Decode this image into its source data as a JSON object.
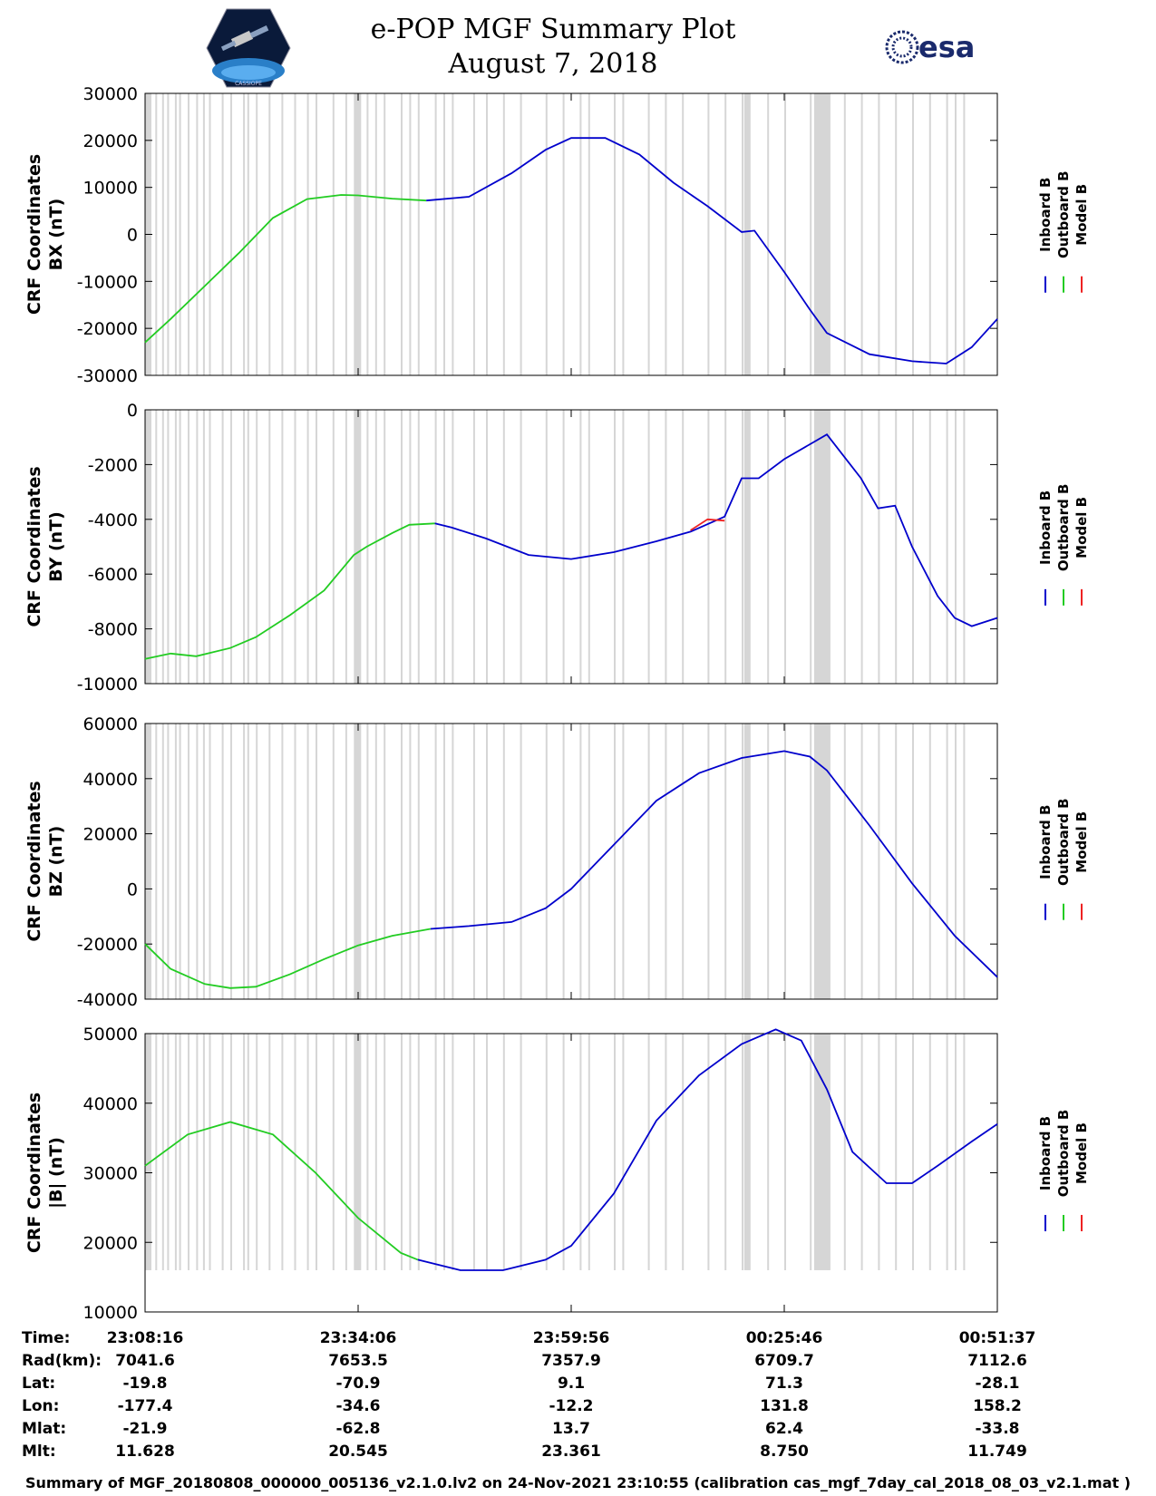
{
  "header": {
    "title": "e-POP MGF Summary Plot",
    "date": "August 7, 2018",
    "mission_logo_icon": "satellite-hexagon-icon",
    "mission_logo_text": "CASSIOPE",
    "esa_logo_text": "esa"
  },
  "legend": {
    "inboard": "Inboard B",
    "outboard": "Outboard B",
    "model": "Model B"
  },
  "colors": {
    "inboard": "#0000cc",
    "outboard": "#22cc22",
    "model": "#ee2222",
    "gaps": "#d6d6d6",
    "axis": "#000000"
  },
  "chart_data": [
    {
      "type": "line",
      "ylabel": "CRF Coordinates",
      "ylabel2": "BX (nT)",
      "ylim": [
        -30000,
        30000
      ],
      "yticks": [
        "30000",
        "20000",
        "10000",
        "0",
        "-10000",
        "-20000",
        "-30000"
      ],
      "yticks_values": [
        30000,
        20000,
        10000,
        0,
        -10000,
        -20000,
        -30000
      ],
      "series": [
        {
          "name": "Outboard B",
          "x": [
            0,
            0.03,
            0.07,
            0.11,
            0.15,
            0.19,
            0.23,
            0.25,
            0.29,
            0.33
          ],
          "y": [
            -23000,
            -18000,
            -11000,
            -4000,
            3500,
            7500,
            8400,
            8300,
            7600,
            7200
          ]
        },
        {
          "name": "Inboard B",
          "x": [
            0.33,
            0.38,
            0.43,
            0.47,
            0.5,
            0.54,
            0.58,
            0.62,
            0.66,
            0.7,
            0.715,
            0.75,
            0.78,
            0.8,
            0.85,
            0.9,
            0.94,
            0.97,
            1.0
          ],
          "y": [
            7200,
            8000,
            13000,
            18000,
            20500,
            20500,
            17000,
            11000,
            6000,
            500,
            800,
            -8000,
            -16000,
            -21000,
            -25500,
            -27000,
            -27500,
            -24000,
            -18000
          ]
        }
      ]
    },
    {
      "type": "line",
      "ylabel": "CRF Coordinates",
      "ylabel2": "BY (nT)",
      "ylim": [
        -10000,
        0
      ],
      "yticks": [
        "0",
        "-2000",
        "-4000",
        "-6000",
        "-8000",
        "-10000"
      ],
      "yticks_values": [
        0,
        -2000,
        -4000,
        -6000,
        -8000,
        -10000
      ],
      "series": [
        {
          "name": "Outboard B",
          "x": [
            0,
            0.03,
            0.06,
            0.1,
            0.13,
            0.17,
            0.21,
            0.245,
            0.26,
            0.29,
            0.31,
            0.34
          ],
          "y": [
            -9100,
            -8900,
            -9000,
            -8700,
            -8300,
            -7500,
            -6600,
            -5300,
            -5000,
            -4500,
            -4200,
            -4150
          ]
        },
        {
          "name": "Inboard B",
          "x": [
            0.34,
            0.36,
            0.4,
            0.45,
            0.5,
            0.55,
            0.6,
            0.64,
            0.68,
            0.7,
            0.72,
            0.75,
            0.8,
            0.84,
            0.86,
            0.88,
            0.9,
            0.93,
            0.95,
            0.97,
            1.0
          ],
          "y": [
            -4150,
            -4300,
            -4700,
            -5300,
            -5450,
            -5200,
            -4800,
            -4450,
            -3900,
            -2500,
            -2500,
            -1800,
            -900,
            -2500,
            -3600,
            -3500,
            -5000,
            -6800,
            -7600,
            -7900,
            -7600
          ]
        },
        {
          "name": "Model B",
          "x": [
            0.64,
            0.66,
            0.68
          ],
          "y": [
            -4400,
            -4000,
            -4050
          ]
        }
      ]
    },
    {
      "type": "line",
      "ylabel": "CRF Coordinates",
      "ylabel2": "BZ (nT)",
      "ylim": [
        -40000,
        60000
      ],
      "yticks": [
        "60000",
        "40000",
        "20000",
        "0",
        "-20000",
        "-40000"
      ],
      "yticks_values": [
        60000,
        40000,
        20000,
        0,
        -20000,
        -40000
      ],
      "series": [
        {
          "name": "Outboard B",
          "x": [
            0,
            0.03,
            0.07,
            0.1,
            0.13,
            0.17,
            0.21,
            0.25,
            0.29,
            0.335
          ],
          "y": [
            -20000,
            -29000,
            -34500,
            -36000,
            -35500,
            -31000,
            -25500,
            -20500,
            -17000,
            -14500
          ]
        },
        {
          "name": "Inboard B",
          "x": [
            0.335,
            0.38,
            0.43,
            0.47,
            0.5,
            0.55,
            0.6,
            0.65,
            0.7,
            0.75,
            0.78,
            0.8,
            0.85,
            0.9,
            0.95,
            1.0
          ],
          "y": [
            -14500,
            -13500,
            -12000,
            -7000,
            0,
            16000,
            32000,
            42000,
            47500,
            50000,
            48000,
            43000,
            23000,
            2000,
            -17000,
            -32000
          ]
        }
      ]
    },
    {
      "type": "line",
      "ylabel": "CRF Coordinates",
      "ylabel2": "|B| (nT)",
      "ylim": [
        10000,
        50000
      ],
      "yticks": [
        "50000",
        "40000",
        "30000",
        "20000",
        "10000"
      ],
      "yticks_values": [
        50000,
        40000,
        30000,
        20000,
        10000
      ],
      "series": [
        {
          "name": "Outboard B",
          "x": [
            0,
            0.05,
            0.1,
            0.15,
            0.2,
            0.25,
            0.3,
            0.32
          ],
          "y": [
            31000,
            35500,
            37300,
            35500,
            30000,
            23500,
            18500,
            17500
          ]
        },
        {
          "name": "Inboard B",
          "x": [
            0.32,
            0.37,
            0.42,
            0.47,
            0.5,
            0.55,
            0.6,
            0.65,
            0.7,
            0.74,
            0.77,
            0.8,
            0.83,
            0.87,
            0.9,
            0.93,
            0.97,
            1.0
          ],
          "y": [
            17500,
            16000,
            16000,
            17500,
            19500,
            27000,
            37500,
            44000,
            48500,
            50600,
            49000,
            42000,
            33000,
            28500,
            28500,
            31000,
            34500,
            37000
          ]
        }
      ]
    }
  ],
  "footer": {
    "row_labels": [
      "Time:",
      "Rad(km):",
      "Lat:",
      "Lon:",
      "Mlat:",
      "Mlt:"
    ],
    "columns": [
      [
        "23:08:16",
        "7041.6",
        "-19.8",
        "-177.4",
        "-21.9",
        "11.628"
      ],
      [
        "23:34:06",
        "7653.5",
        "-70.9",
        "-34.6",
        "-62.8",
        "20.545"
      ],
      [
        "23:59:56",
        "7357.9",
        "9.1",
        "-12.2",
        "13.7",
        "23.361"
      ],
      [
        "00:25:46",
        "6709.7",
        "71.3",
        "131.8",
        "62.4",
        "8.750"
      ],
      [
        "00:51:37",
        "7112.6",
        "-28.1",
        "158.2",
        "-33.8",
        "11.749"
      ]
    ],
    "note": "Summary of MGF_20180808_000000_005136_v2.1.0.lv2 on 24-Nov-2021 23:10:55 (calibration cas_mgf_7day_cal_2018_08_03_v2.1.mat )"
  }
}
